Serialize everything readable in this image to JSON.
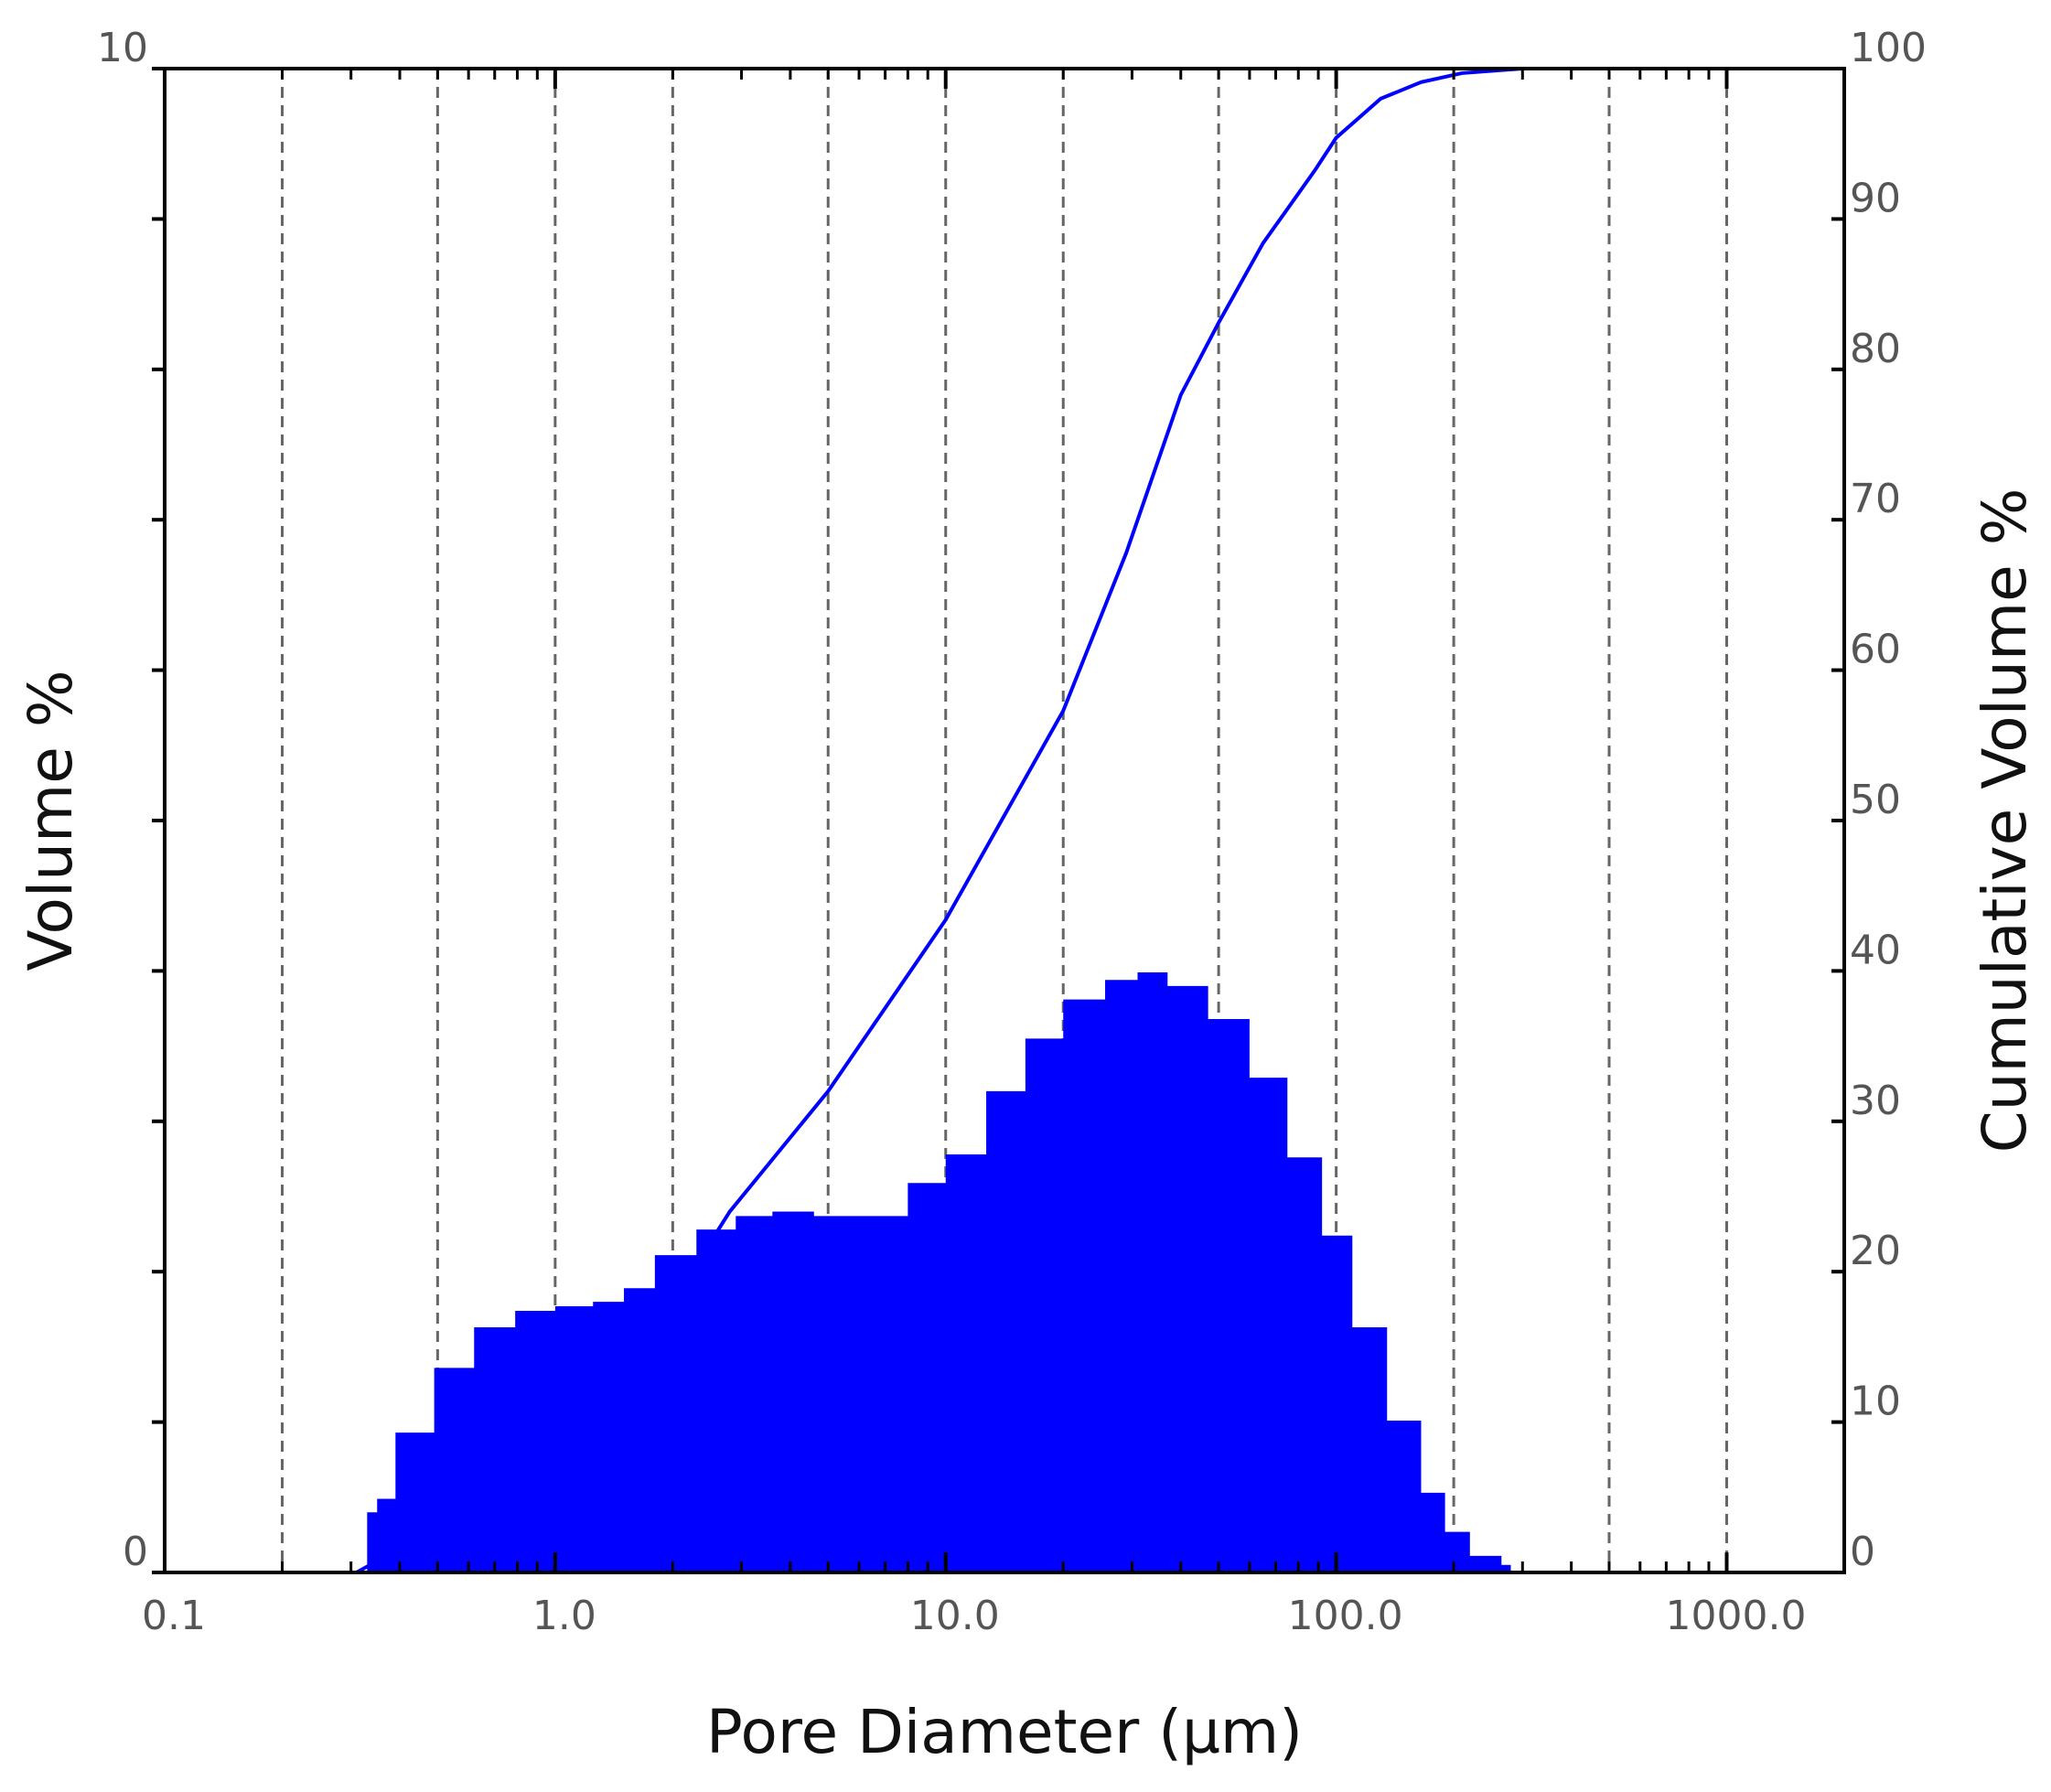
{
  "chart_data": {
    "type": "area",
    "xlabel": "Pore Diameter (µm)",
    "ylabel": "Volume %",
    "y2label": "Cumulative Volume %",
    "xscale": "log",
    "xlim": [
      0.1,
      2000
    ],
    "xticks": [
      0.1,
      {
        "value": 1,
        "label": "1.0"
      },
      {
        "value": 10,
        "label": "10.0"
      },
      {
        "value": 100,
        "label": "100.0"
      },
      {
        "value": 1000,
        "label": "1000.0"
      }
    ],
    "x_minor_ticks": [
      0.2,
      0.3,
      0.4,
      0.5,
      0.6,
      0.7,
      0.8,
      0.9,
      2,
      3,
      4,
      5,
      6,
      7,
      8,
      9,
      20,
      30,
      40,
      50,
      60,
      70,
      80,
      90,
      200,
      300,
      400,
      500,
      600,
      700,
      800,
      900
    ],
    "xgrid": [
      0.2,
      0.5,
      1,
      2,
      5,
      10,
      20,
      50,
      100,
      200,
      500,
      1000
    ],
    "ylim": [
      0,
      10
    ],
    "yticks": [
      0,
      10
    ],
    "y_minor_ticks": [
      1,
      2,
      3,
      4,
      5,
      6,
      7,
      8,
      9
    ],
    "y2lim": [
      0,
      100
    ],
    "y2ticks": [
      0,
      10,
      20,
      30,
      40,
      50,
      60,
      70,
      80,
      90,
      100
    ],
    "series": [
      {
        "type": "area",
        "color": "#0000ff",
        "x": [
          0.31,
          0.33,
          0.35,
          0.39,
          0.49,
          0.62,
          0.79,
          1.0,
          1.25,
          1.5,
          1.8,
          2.3,
          2.9,
          3.6,
          4.6,
          6.0,
          8.0,
          10,
          12.7,
          16,
          20,
          25.6,
          31,
          37,
          47,
          60,
          75,
          92,
          110,
          135,
          165,
          190,
          220,
          265,
          280
        ],
        "values": [
          0,
          0.4,
          0.49,
          0.93,
          1.36,
          1.63,
          1.74,
          1.77,
          1.8,
          1.89,
          2.11,
          2.28,
          2.37,
          2.4,
          2.37,
          2.37,
          2.59,
          2.78,
          3.2,
          3.55,
          3.81,
          3.94,
          3.99,
          3.9,
          3.68,
          3.29,
          2.76,
          2.24,
          1.63,
          1.01,
          0.53,
          0.27,
          0.11,
          0.05,
          0
        ]
      },
      {
        "type": "line",
        "axis": "y2",
        "color": "#0000ff",
        "x": [
          0.31,
          0.5,
          1.0,
          2,
          2.8,
          5,
          10,
          20,
          29,
          40,
          50,
          65,
          88,
          100,
          130,
          165,
          210,
          300
        ],
        "values": [
          0,
          3,
          9,
          18,
          24,
          32,
          43.4,
          57.3,
          67.8,
          78.3,
          83.1,
          88.4,
          93.2,
          95.4,
          98,
          99.1,
          99.7,
          100
        ]
      }
    ]
  }
}
